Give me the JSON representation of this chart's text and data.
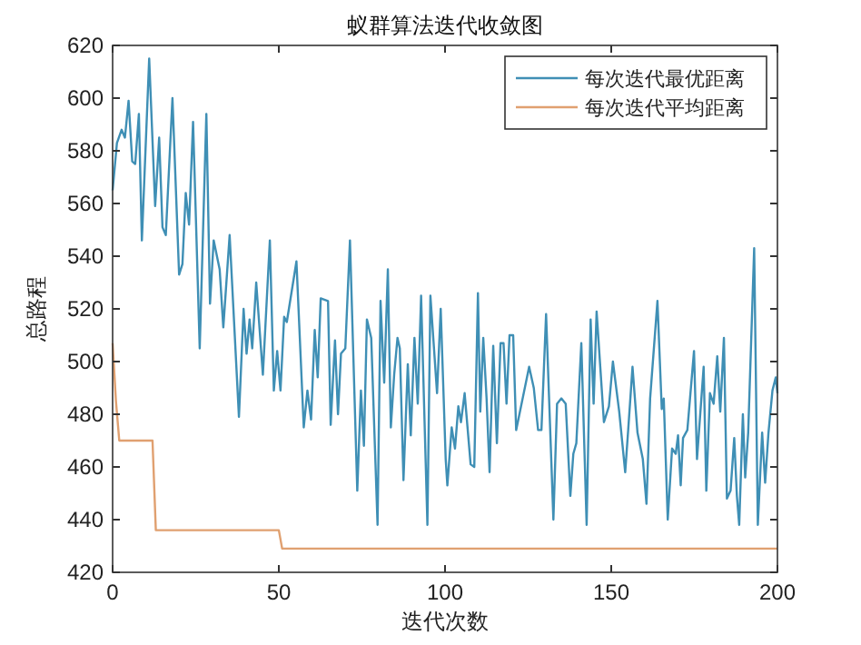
{
  "chart_data": {
    "type": "line",
    "title": "蚁群算法迭代收敛图",
    "xlabel": "迭代次数",
    "ylabel": "总路程",
    "xlim": [
      0,
      200
    ],
    "xticks": [
      0,
      50,
      100,
      150,
      200
    ],
    "ylim": [
      420,
      620
    ],
    "yticks": [
      420,
      440,
      460,
      480,
      500,
      520,
      540,
      560,
      580,
      600,
      620
    ],
    "legend": "top right",
    "grid": false,
    "marker": "none",
    "line_style": "solid",
    "series": [
      {
        "name": "每次迭代最优距离",
        "color": "#3f8fb5",
        "x": [
          0,
          1.3,
          2.7,
          3.7,
          4.8,
          5.9,
          6.8,
          7.9,
          8.8,
          11,
          12.8,
          14,
          15,
          16,
          18,
          20,
          21,
          22,
          23,
          24.2,
          26.2,
          28.2,
          29.3,
          30.4,
          32.2,
          33.3,
          35.2,
          38,
          39.4,
          40.3,
          41.2,
          42,
          43.2,
          45.2,
          47.3,
          48.5,
          49.5,
          50.5,
          51.6,
          52.4,
          55.3,
          57.5,
          58.6,
          59.7,
          60.8,
          61.7,
          62.6,
          64.8,
          65.6,
          66.9,
          67.8,
          68.7,
          70,
          71.4,
          73.6,
          74.7,
          75.6,
          76.5,
          77.8,
          79.7,
          80.6,
          81.7,
          82.8,
          83.7,
          84.7,
          85.7,
          86.4,
          87.5,
          88.8,
          89.7,
          90.8,
          91.8,
          92.8,
          94.7,
          95.6,
          97.6,
          98.7,
          100.2,
          100.7,
          102,
          103,
          104,
          104.8,
          105.9,
          107.7,
          108.8,
          109.9,
          110.6,
          111.5,
          112.5,
          113.4,
          114.5,
          115.6,
          116.7,
          117.6,
          118.5,
          119.4,
          120.5,
          121.4,
          122.7,
          125.3,
          126.7,
          128,
          129,
          130.4,
          132.6,
          133.7,
          135,
          136.3,
          137.7,
          138.6,
          139.5,
          141,
          142.6,
          143.8,
          144.7,
          145.6,
          147.8,
          149.3,
          150.5,
          152.4,
          154.2,
          155.1,
          156.4,
          157.9,
          159.5,
          160.6,
          161.7,
          163.9,
          165.2,
          165.8,
          167,
          168.3,
          169.4,
          170.1,
          170.9,
          171.6,
          172.9,
          174.9,
          175.8,
          177.8,
          178.6,
          179.7,
          180.8,
          181.9,
          182.8,
          183.9,
          184.8,
          185.9,
          187,
          187.8,
          188.5,
          189.6,
          190.3,
          191.2,
          193,
          194.1,
          195.4,
          196.3,
          197.3,
          198.5,
          199.5,
          200
        ],
        "values": [
          565,
          583,
          588,
          585,
          599,
          576,
          575,
          594,
          546,
          615,
          559,
          585,
          551,
          548,
          600,
          533,
          537,
          564,
          552,
          591,
          505,
          594,
          522,
          546,
          535,
          513,
          548,
          479,
          520,
          503,
          516,
          505,
          530,
          495,
          546,
          489,
          504,
          489,
          517,
          515,
          538,
          475,
          489,
          478,
          512,
          494,
          524,
          523,
          476,
          508,
          480,
          503,
          505,
          546,
          451,
          489,
          468,
          516,
          509,
          438,
          523,
          492,
          535,
          475,
          495,
          509,
          505,
          455,
          499,
          472,
          509,
          484,
          525,
          438,
          525,
          488,
          520,
          463,
          453,
          475,
          467,
          483,
          477,
          488,
          461,
          460,
          526,
          481,
          509,
          486,
          458,
          506,
          469,
          507,
          507,
          484,
          510,
          510,
          474,
          482,
          498,
          490,
          474,
          474,
          518,
          440,
          484,
          486,
          484,
          449,
          465,
          469,
          507,
          438,
          516,
          484,
          519,
          477,
          483,
          500,
          481,
          458,
          474,
          498,
          473,
          463,
          446,
          486,
          523,
          482,
          486,
          440,
          467,
          465,
          472,
          453,
          471,
          474,
          504,
          463,
          498,
          451,
          488,
          484,
          502,
          481,
          509,
          448,
          451,
          471,
          449,
          438,
          480,
          456,
          473,
          543,
          438,
          473,
          454,
          473,
          489,
          494,
          488
        ]
      },
      {
        "name": "每次迭代平均距离",
        "color": "#e0a070",
        "x": [
          0,
          1,
          2,
          12,
          13,
          50,
          51,
          200
        ],
        "values": [
          507,
          485,
          470,
          470,
          436,
          436,
          429,
          429
        ]
      }
    ]
  }
}
